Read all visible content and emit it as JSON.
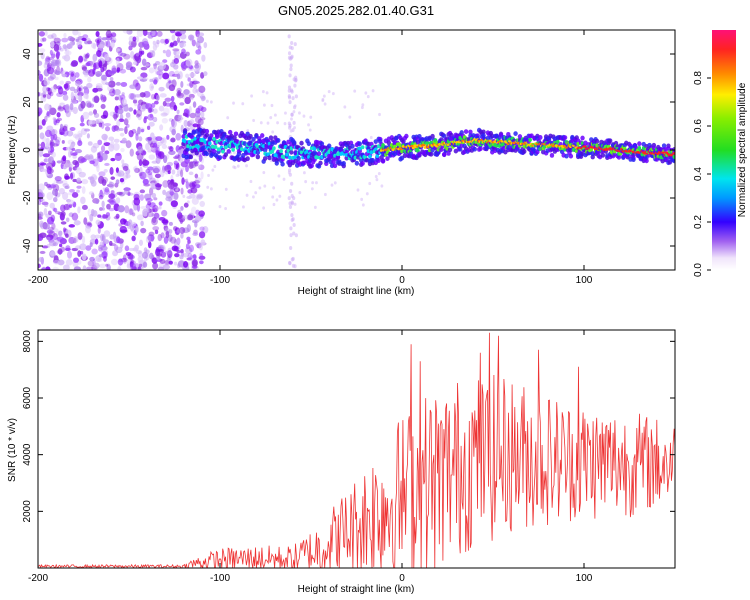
{
  "title": "GN05.2025.282.01.40.G31",
  "chart_data": [
    {
      "type": "heatmap",
      "xlabel": "Height of straight line (km)",
      "ylabel": "Frequency (Hz)",
      "xlim": [
        -200,
        150
      ],
      "ylim": [
        -50,
        50
      ],
      "xticks": [
        -200,
        -100,
        0,
        100
      ],
      "yticks": [
        -40,
        -20,
        0,
        20,
        40
      ],
      "noise_region_x": [
        -200,
        -120
      ],
      "stripe_x": -60,
      "signal_band": {
        "start_x": -120,
        "center_hz": [
          {
            "x": -120,
            "f": 3
          },
          {
            "x": -100,
            "f": 2
          },
          {
            "x": -80,
            "f": 1
          },
          {
            "x": -60,
            "f": -1
          },
          {
            "x": -40,
            "f": -2
          },
          {
            "x": -20,
            "f": -1
          },
          {
            "x": 0,
            "f": 1
          },
          {
            "x": 20,
            "f": 2
          },
          {
            "x": 40,
            "f": 4
          },
          {
            "x": 60,
            "f": 3
          },
          {
            "x": 80,
            "f": 2
          },
          {
            "x": 100,
            "f": 1
          },
          {
            "x": 120,
            "f": 0
          },
          {
            "x": 150,
            "f": -2
          }
        ]
      },
      "colorbar": {
        "label": "Normalized spectral amplitude",
        "range": [
          0,
          1
        ],
        "ticks": [
          "0.0",
          "0.2",
          "0.4",
          "0.6",
          "0.8"
        ],
        "tick_values": [
          0.0,
          0.2,
          0.4,
          0.6,
          0.8
        ]
      }
    },
    {
      "type": "line",
      "xlabel": "Height of straight line (km)",
      "ylabel": "SNR (10 * v/v)",
      "xlim": [
        -200,
        150
      ],
      "ylim": [
        0,
        8400
      ],
      "xticks": [
        -200,
        -100,
        0,
        100
      ],
      "yticks": [
        2000,
        4000,
        6000,
        8000
      ],
      "color": "#ee3333",
      "envelope": [
        {
          "x": -200,
          "base": 60,
          "amp": 50
        },
        {
          "x": -120,
          "base": 60,
          "amp": 60
        },
        {
          "x": -115,
          "base": 150,
          "amp": 200
        },
        {
          "x": -100,
          "base": 300,
          "amp": 400
        },
        {
          "x": -80,
          "base": 350,
          "amp": 450
        },
        {
          "x": -60,
          "base": 300,
          "amp": 500
        },
        {
          "x": -45,
          "base": 700,
          "amp": 1000
        },
        {
          "x": -25,
          "base": 1500,
          "amp": 1800
        },
        {
          "x": -15,
          "base": 2000,
          "amp": 2400
        },
        {
          "x": 0,
          "base": 2500,
          "amp": 3000
        },
        {
          "x": 15,
          "base": 3000,
          "amp": 3400
        },
        {
          "x": 35,
          "base": 3700,
          "amp": 3200
        },
        {
          "x": 60,
          "base": 4000,
          "amp": 2800
        },
        {
          "x": 90,
          "base": 3800,
          "amp": 2200
        },
        {
          "x": 120,
          "base": 3700,
          "amp": 2000
        },
        {
          "x": 150,
          "base": 3700,
          "amp": 1500
        }
      ],
      "peaks": [
        {
          "x": 5,
          "y": 7900
        },
        {
          "x": 10,
          "y": 7300
        },
        {
          "x": 43,
          "y": 7600
        },
        {
          "x": 48,
          "y": 8300
        },
        {
          "x": 53,
          "y": 8200
        },
        {
          "x": 75,
          "y": 7700
        },
        {
          "x": 97,
          "y": 7100
        }
      ]
    }
  ]
}
